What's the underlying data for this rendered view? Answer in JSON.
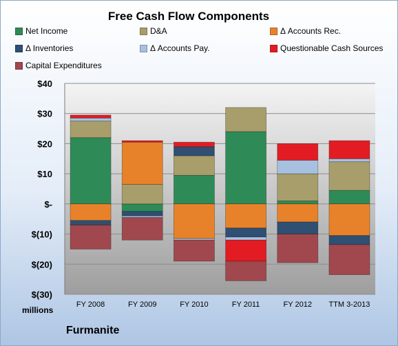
{
  "chart_data": {
    "type": "bar",
    "stacked": true,
    "title": "Free Cash Flow Components",
    "categories": [
      "FY 2008",
      "FY 2009",
      "FY 2010",
      "FY 2011",
      "FY 2012",
      "TTM 3-2013"
    ],
    "y_unit_label": "millions",
    "ylim": [
      -30,
      40
    ],
    "yticks": [
      40,
      30,
      20,
      10,
      0,
      -10,
      -20,
      -30
    ],
    "ytick_labels": [
      "$40",
      "$30",
      "$20",
      "$10",
      "$-",
      "$(10)",
      "$(20)",
      "$(30)"
    ],
    "grid": true,
    "legend_position": "top",
    "series": [
      {
        "name": "Net Income",
        "color": "#2e8b57",
        "values": [
          22,
          -2.5,
          9.5,
          24,
          1,
          4.5
        ]
      },
      {
        "name": "D&A",
        "color": "#a89e6b",
        "values": [
          5.5,
          6.5,
          6.5,
          8,
          9,
          9.5
        ]
      },
      {
        "name": "Δ Accounts Rec.",
        "color": "#e8822a",
        "values": [
          -5.5,
          14,
          -11.5,
          -8,
          -6,
          -10.5
        ]
      },
      {
        "name": "Δ Inventories",
        "color": "#2f4f73",
        "values": [
          -1.5,
          -1.5,
          3,
          -3,
          -4,
          -3
        ]
      },
      {
        "name": "Δ Accounts Pay.",
        "color": "#a8c0e0",
        "values": [
          1,
          -0.5,
          -0.5,
          -1,
          4.5,
          1
        ]
      },
      {
        "name": "Questionable Cash Sources",
        "color": "#e31c24",
        "values": [
          1,
          0.5,
          1.5,
          -7,
          5.5,
          6
        ]
      },
      {
        "name": "Capital Expenditures",
        "color": "#a0484e",
        "values": [
          -8,
          -7.5,
          -7,
          -6.5,
          -9.5,
          -10
        ]
      }
    ]
  },
  "footer": {
    "company": "Furmanite"
  }
}
